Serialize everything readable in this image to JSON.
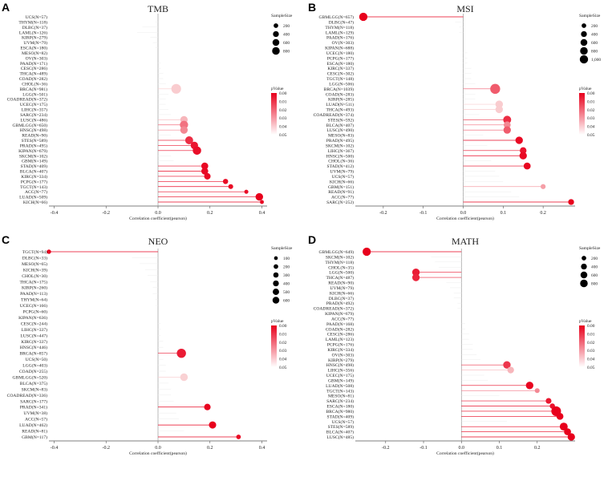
{
  "colors": {
    "high_significance": "#e8001c",
    "low_significance": "#fbe3e3",
    "zero_line": "#9a9a9a",
    "stick_nonsig": "#ececec",
    "text": "#222222"
  },
  "chart_data": [
    {
      "type": "scatter",
      "panel": "A",
      "title": "TMB",
      "xlabel": "Correlation coefficient(pearson)",
      "xlim": [
        -0.42,
        0.42
      ],
      "xticks": [
        "-0.4",
        "-0.2",
        "0.0",
        "0.2",
        "0.4"
      ],
      "size_legend_title": "SampleSize",
      "size_legend": [
        "200",
        "400",
        "600",
        "800"
      ],
      "color_legend_title": "pValue",
      "color_legend": [
        "0.00",
        "0.01",
        "0.02",
        "0.03",
        "0.04",
        "0.05"
      ],
      "points": [
        {
          "label": "UCS(N=57)",
          "r": 0.0,
          "n": 57,
          "p": 0.9
        },
        {
          "label": "THYM(N=118)",
          "r": -0.01,
          "n": 118,
          "p": 0.9
        },
        {
          "label": "DLBC(N=37)",
          "r": -0.06,
          "n": 37,
          "p": 0.9
        },
        {
          "label": "LAML(N=126)",
          "r": -0.08,
          "n": 126,
          "p": 0.9
        },
        {
          "label": "KIRP(N=279)",
          "r": -0.03,
          "n": 279,
          "p": 0.9
        },
        {
          "label": "UVM(N=79)",
          "r": -0.02,
          "n": 79,
          "p": 0.9
        },
        {
          "label": "ESCA(N=180)",
          "r": -0.01,
          "n": 180,
          "p": 0.9
        },
        {
          "label": "MESO(N=82)",
          "r": 0.0,
          "n": 82,
          "p": 0.9
        },
        {
          "label": "OV(N=303)",
          "r": 0.0,
          "n": 303,
          "p": 0.9
        },
        {
          "label": "PAAD(N=171)",
          "r": 0.01,
          "n": 171,
          "p": 0.9
        },
        {
          "label": "CESC(N=286)",
          "r": 0.01,
          "n": 286,
          "p": 0.9
        },
        {
          "label": "THCA(N=489)",
          "r": 0.02,
          "n": 489,
          "p": 0.9
        },
        {
          "label": "COAD(N=282)",
          "r": 0.02,
          "n": 282,
          "p": 0.9
        },
        {
          "label": "CHOL(N=36)",
          "r": 0.03,
          "n": 36,
          "p": 0.9
        },
        {
          "label": "BRCA(N=981)",
          "r": 0.07,
          "n": 981,
          "p": 0.045
        },
        {
          "label": "LGG(N=501)",
          "r": 0.04,
          "n": 501,
          "p": 0.9
        },
        {
          "label": "COADREAD(N=372)",
          "r": 0.03,
          "n": 372,
          "p": 0.9
        },
        {
          "label": "UCEC(N=175)",
          "r": 0.03,
          "n": 175,
          "p": 0.9
        },
        {
          "label": "LIHC(N=357)",
          "r": 0.04,
          "n": 357,
          "p": 0.9
        },
        {
          "label": "SARC(N=234)",
          "r": 0.05,
          "n": 234,
          "p": 0.9
        },
        {
          "label": "LUSC(N=486)",
          "r": 0.1,
          "n": 486,
          "p": 0.04
        },
        {
          "label": "GBMLGG(N=650)",
          "r": 0.1,
          "n": 650,
          "p": 0.025
        },
        {
          "label": "HNSC(N=498)",
          "r": 0.1,
          "n": 498,
          "p": 0.03
        },
        {
          "label": "READ(N=90)",
          "r": 0.05,
          "n": 90,
          "p": 0.9
        },
        {
          "label": "STES(N=589)",
          "r": 0.12,
          "n": 589,
          "p": 0.01
        },
        {
          "label": "PRAD(N=495)",
          "r": 0.14,
          "n": 495,
          "p": 0.005
        },
        {
          "label": "KIPAN(N=679)",
          "r": 0.15,
          "n": 679,
          "p": 0.003
        },
        {
          "label": "SKCM(N=102)",
          "r": 0.05,
          "n": 102,
          "p": 0.9
        },
        {
          "label": "GBM(N=149)",
          "r": 0.06,
          "n": 149,
          "p": 0.9
        },
        {
          "label": "STAD(N=409)",
          "r": 0.18,
          "n": 409,
          "p": 0.002
        },
        {
          "label": "BLCA(N=407)",
          "r": 0.18,
          "n": 407,
          "p": 0.002
        },
        {
          "label": "KIRC(N=334)",
          "r": 0.19,
          "n": 334,
          "p": 0.002
        },
        {
          "label": "PCPG(N=177)",
          "r": 0.26,
          "n": 177,
          "p": 0.002
        },
        {
          "label": "TGCT(N=143)",
          "r": 0.28,
          "n": 143,
          "p": 0.002
        },
        {
          "label": "ACC(N=77)",
          "r": 0.34,
          "n": 77,
          "p": 0.003
        },
        {
          "label": "LUAD(N=509)",
          "r": 0.39,
          "n": 509,
          "p": 0.0
        },
        {
          "label": "KICH(N=66)",
          "r": 0.4,
          "n": 66,
          "p": 0.002
        }
      ]
    },
    {
      "type": "scatter",
      "panel": "B",
      "title": "MSI",
      "xlabel": "Correlation coefficient(pearson)",
      "xlim": [
        -0.27,
        0.28
      ],
      "xticks": [
        "-0.2",
        "-0.1",
        "0.0",
        "0.1",
        "0.2"
      ],
      "size_legend_title": "SampleSize",
      "size_legend": [
        "200",
        "400",
        "600",
        "800",
        "1,000"
      ],
      "color_legend_title": "pValue",
      "color_legend": [
        "0.00",
        "0.01",
        "0.02",
        "0.03",
        "0.04",
        "0.05"
      ],
      "points": [
        {
          "label": "GBMLGG(N=657)",
          "r": -0.25,
          "n": 657,
          "p": 0.0
        },
        {
          "label": "DLBC(N=47)",
          "r": -0.02,
          "n": 47,
          "p": 0.9
        },
        {
          "label": "THYM(N=118)",
          "r": -0.01,
          "n": 118,
          "p": 0.9
        },
        {
          "label": "LAML(N=129)",
          "r": -0.01,
          "n": 129,
          "p": 0.9
        },
        {
          "label": "PAAD(N=176)",
          "r": 0.0,
          "n": 176,
          "p": 0.9
        },
        {
          "label": "OV(N=303)",
          "r": 0.0,
          "n": 303,
          "p": 0.9
        },
        {
          "label": "KIPAN(N=688)",
          "r": 0.0,
          "n": 688,
          "p": 0.9
        },
        {
          "label": "UCEC(N=180)",
          "r": 0.01,
          "n": 180,
          "p": 0.9
        },
        {
          "label": "PCPG(N=177)",
          "r": 0.01,
          "n": 177,
          "p": 0.9
        },
        {
          "label": "ESCA(N=180)",
          "r": 0.01,
          "n": 180,
          "p": 0.9
        },
        {
          "label": "KIRC(N=337)",
          "r": 0.02,
          "n": 337,
          "p": 0.9
        },
        {
          "label": "CESC(N=302)",
          "r": 0.02,
          "n": 302,
          "p": 0.9
        },
        {
          "label": "TGCT(N=148)",
          "r": 0.02,
          "n": 148,
          "p": 0.9
        },
        {
          "label": "LGG(N=506)",
          "r": 0.03,
          "n": 506,
          "p": 0.9
        },
        {
          "label": "BRCA(N=1039)",
          "r": 0.08,
          "n": 1039,
          "p": 0.02
        },
        {
          "label": "COAD(N=283)",
          "r": 0.03,
          "n": 283,
          "p": 0.9
        },
        {
          "label": "KIRP(N=285)",
          "r": 0.03,
          "n": 285,
          "p": 0.9
        },
        {
          "label": "LUAD(N=511)",
          "r": 0.09,
          "n": 511,
          "p": 0.045
        },
        {
          "label": "THCA(N=493)",
          "r": 0.09,
          "n": 493,
          "p": 0.045
        },
        {
          "label": "COADREAD(N=374)",
          "r": 0.04,
          "n": 374,
          "p": 0.9
        },
        {
          "label": "STES(N=592)",
          "r": 0.11,
          "n": 592,
          "p": 0.01
        },
        {
          "label": "BLCA(N=407)",
          "r": 0.11,
          "n": 407,
          "p": 0.03
        },
        {
          "label": "LUSC(N=490)",
          "r": 0.11,
          "n": 490,
          "p": 0.02
        },
        {
          "label": "MESO(N=83)",
          "r": 0.05,
          "n": 83,
          "p": 0.9
        },
        {
          "label": "PRAD(N=495)",
          "r": 0.14,
          "n": 495,
          "p": 0.002
        },
        {
          "label": "SKCM(N=102)",
          "r": 0.06,
          "n": 102,
          "p": 0.9
        },
        {
          "label": "LIHC(N=367)",
          "r": 0.15,
          "n": 367,
          "p": 0.004
        },
        {
          "label": "HNSC(N=500)",
          "r": 0.15,
          "n": 500,
          "p": 0.002
        },
        {
          "label": "CHOL(N=36)",
          "r": 0.07,
          "n": 36,
          "p": 0.9
        },
        {
          "label": "STAD(N=412)",
          "r": 0.16,
          "n": 412,
          "p": 0.001
        },
        {
          "label": "UVM(N=79)",
          "r": 0.08,
          "n": 79,
          "p": 0.9
        },
        {
          "label": "UCS(N=57)",
          "r": 0.09,
          "n": 57,
          "p": 0.9
        },
        {
          "label": "KICH(N=66)",
          "r": 0.1,
          "n": 66,
          "p": 0.9
        },
        {
          "label": "GBM(N=151)",
          "r": 0.2,
          "n": 151,
          "p": 0.035
        },
        {
          "label": "READ(N=91)",
          "r": 0.12,
          "n": 91,
          "p": 0.9
        },
        {
          "label": "ACC(N=77)",
          "r": 0.14,
          "n": 77,
          "p": 0.9
        },
        {
          "label": "SARC(N=252)",
          "r": 0.27,
          "n": 252,
          "p": 0.0
        }
      ]
    },
    {
      "type": "scatter",
      "panel": "C",
      "title": "NEO",
      "xlabel": "Correlation coefficient(pearson)",
      "xlim": [
        -0.42,
        0.42
      ],
      "xticks": [
        "-0.4",
        "-0.2",
        "0.0",
        "0.2",
        "0.4"
      ],
      "size_legend_title": "SampleSize",
      "size_legend": [
        "100",
        "200",
        "300",
        "400",
        "500",
        "600"
      ],
      "color_legend_title": "pValue",
      "color_legend": [
        "0.00",
        "0.01",
        "0.02",
        "0.03",
        "0.04",
        "0.05"
      ],
      "points": [
        {
          "label": "TGCT(N=94)",
          "r": -0.42,
          "n": 94,
          "p": 0.001
        },
        {
          "label": "DLBC(N=33)",
          "r": -0.1,
          "n": 33,
          "p": 0.9
        },
        {
          "label": "MESO(N=65)",
          "r": -0.07,
          "n": 65,
          "p": 0.9
        },
        {
          "label": "KICH(N=39)",
          "r": -0.05,
          "n": 39,
          "p": 0.9
        },
        {
          "label": "CHOL(N=30)",
          "r": -0.04,
          "n": 30,
          "p": 0.9
        },
        {
          "label": "THCA(N=175)",
          "r": -0.03,
          "n": 175,
          "p": 0.9
        },
        {
          "label": "KIRP(N=260)",
          "r": -0.02,
          "n": 260,
          "p": 0.9
        },
        {
          "label": "PAAD(N=113)",
          "r": -0.02,
          "n": 113,
          "p": 0.9
        },
        {
          "label": "THYM(N=64)",
          "r": -0.01,
          "n": 64,
          "p": 0.9
        },
        {
          "label": "UCEC(N=166)",
          "r": -0.01,
          "n": 166,
          "p": 0.9
        },
        {
          "label": "PCPG(N=60)",
          "r": 0.0,
          "n": 60,
          "p": 0.9
        },
        {
          "label": "KIPAN(N=636)",
          "r": 0.0,
          "n": 636,
          "p": 0.9
        },
        {
          "label": "CESC(N=244)",
          "r": 0.01,
          "n": 244,
          "p": 0.9
        },
        {
          "label": "LIHC(N=337)",
          "r": 0.01,
          "n": 337,
          "p": 0.9
        },
        {
          "label": "LUSC(N=447)",
          "r": 0.01,
          "n": 447,
          "p": 0.9
        },
        {
          "label": "KIRC(N=337)",
          "r": 0.02,
          "n": 337,
          "p": 0.9
        },
        {
          "label": "HNSC(N=446)",
          "r": 0.02,
          "n": 446,
          "p": 0.9
        },
        {
          "label": "BRCA(N=857)",
          "r": 0.09,
          "n": 857,
          "p": 0.006
        },
        {
          "label": "UCS(N=50)",
          "r": 0.02,
          "n": 50,
          "p": 0.9
        },
        {
          "label": "LGG(N=403)",
          "r": 0.03,
          "n": 403,
          "p": 0.9
        },
        {
          "label": "COAD(N=255)",
          "r": 0.03,
          "n": 255,
          "p": 0.9
        },
        {
          "label": "GBMLGG(N=520)",
          "r": 0.1,
          "n": 520,
          "p": 0.046
        },
        {
          "label": "BLCA(N=375)",
          "r": 0.04,
          "n": 375,
          "p": 0.9
        },
        {
          "label": "SKCM(N=83)",
          "r": 0.05,
          "n": 83,
          "p": 0.9
        },
        {
          "label": "COADREAD(N=336)",
          "r": 0.05,
          "n": 336,
          "p": 0.9
        },
        {
          "label": "SARC(N=177)",
          "r": 0.06,
          "n": 177,
          "p": 0.9
        },
        {
          "label": "PRAD(N=341)",
          "r": 0.19,
          "n": 341,
          "p": 0.001
        },
        {
          "label": "UVM(N=38)",
          "r": 0.07,
          "n": 38,
          "p": 0.9
        },
        {
          "label": "ACC(N=57)",
          "r": 0.08,
          "n": 57,
          "p": 0.9
        },
        {
          "label": "LUAD(N=462)",
          "r": 0.21,
          "n": 462,
          "p": 0.0
        },
        {
          "label": "READ(N=81)",
          "r": 0.1,
          "n": 81,
          "p": 0.9
        },
        {
          "label": "GBM(N=117)",
          "r": 0.31,
          "n": 117,
          "p": 0.002
        }
      ]
    },
    {
      "type": "scatter",
      "panel": "D",
      "title": "MATH",
      "xlabel": "Correlation coefficient(pearson)",
      "xlim": [
        -0.28,
        0.3
      ],
      "xticks": [
        "-0.2",
        "-0.1",
        "0.0",
        "0.1",
        "0.2"
      ],
      "size_legend_title": "SampleSize",
      "size_legend": [
        "200",
        "400",
        "600",
        "800"
      ],
      "color_legend_title": "pValue",
      "color_legend": [
        "0.00",
        "0.01",
        "0.02",
        "0.03",
        "0.04",
        "0.05"
      ],
      "points": [
        {
          "label": "GBMLGG(N=649)",
          "r": -0.25,
          "n": 649,
          "p": 0.0
        },
        {
          "label": "SKCM(N=102)",
          "r": -0.08,
          "n": 102,
          "p": 0.9
        },
        {
          "label": "THYM(N=118)",
          "r": -0.07,
          "n": 118,
          "p": 0.9
        },
        {
          "label": "CHOL(N=35)",
          "r": -0.06,
          "n": 35,
          "p": 0.9
        },
        {
          "label": "LGG(N=500)",
          "r": -0.12,
          "n": 500,
          "p": 0.006
        },
        {
          "label": "THCA(N=487)",
          "r": -0.12,
          "n": 487,
          "p": 0.008
        },
        {
          "label": "READ(N=90)",
          "r": -0.04,
          "n": 90,
          "p": 0.9
        },
        {
          "label": "UVM(N=79)",
          "r": -0.03,
          "n": 79,
          "p": 0.9
        },
        {
          "label": "KICH(N=66)",
          "r": -0.02,
          "n": 66,
          "p": 0.9
        },
        {
          "label": "DLBC(N=37)",
          "r": -0.02,
          "n": 37,
          "p": 0.9
        },
        {
          "label": "PRAD(N=492)",
          "r": -0.01,
          "n": 492,
          "p": 0.9
        },
        {
          "label": "COADREAD(N=372)",
          "r": -0.01,
          "n": 372,
          "p": 0.9
        },
        {
          "label": "KIPAN(N=679)",
          "r": 0.0,
          "n": 679,
          "p": 0.9
        },
        {
          "label": "ACC(N=77)",
          "r": 0.0,
          "n": 77,
          "p": 0.9
        },
        {
          "label": "PAAD(N=168)",
          "r": 0.01,
          "n": 168,
          "p": 0.9
        },
        {
          "label": "COAD(N=282)",
          "r": 0.01,
          "n": 282,
          "p": 0.9
        },
        {
          "label": "CESC(N=286)",
          "r": 0.02,
          "n": 286,
          "p": 0.9
        },
        {
          "label": "LAML(N=123)",
          "r": 0.02,
          "n": 123,
          "p": 0.9
        },
        {
          "label": "PCPG(N=176)",
          "r": 0.03,
          "n": 176,
          "p": 0.9
        },
        {
          "label": "KIRC(N=334)",
          "r": 0.03,
          "n": 334,
          "p": 0.9
        },
        {
          "label": "OV(N=303)",
          "r": 0.04,
          "n": 303,
          "p": 0.9
        },
        {
          "label": "KIRP(N=279)",
          "r": 0.05,
          "n": 279,
          "p": 0.9
        },
        {
          "label": "HNSC(N=498)",
          "r": 0.12,
          "n": 498,
          "p": 0.012
        },
        {
          "label": "LIHC(N=356)",
          "r": 0.13,
          "n": 356,
          "p": 0.04
        },
        {
          "label": "UCEC(N=175)",
          "r": 0.06,
          "n": 175,
          "p": 0.9
        },
        {
          "label": "GBM(N=149)",
          "r": 0.07,
          "n": 149,
          "p": 0.9
        },
        {
          "label": "LUAD(N=508)",
          "r": 0.18,
          "n": 508,
          "p": 0.001
        },
        {
          "label": "TGCT(N=143)",
          "r": 0.2,
          "n": 143,
          "p": 0.03
        },
        {
          "label": "MESO(N=81)",
          "r": 0.1,
          "n": 81,
          "p": 0.9
        },
        {
          "label": "SARC(N=234)",
          "r": 0.23,
          "n": 234,
          "p": 0.005
        },
        {
          "label": "ESCA(N=180)",
          "r": 0.24,
          "n": 180,
          "p": 0.004
        },
        {
          "label": "BRCA(N=980)",
          "r": 0.25,
          "n": 980,
          "p": 0.0
        },
        {
          "label": "STAD(N=409)",
          "r": 0.26,
          "n": 409,
          "p": 0.0
        },
        {
          "label": "UCS(N=57)",
          "r": 0.12,
          "n": 57,
          "p": 0.9
        },
        {
          "label": "STES(N=589)",
          "r": 0.27,
          "n": 589,
          "p": 0.0
        },
        {
          "label": "BLCA(N=407)",
          "r": 0.28,
          "n": 407,
          "p": 0.0
        },
        {
          "label": "LUSC(N=485)",
          "r": 0.29,
          "n": 485,
          "p": 0.0
        }
      ]
    }
  ]
}
